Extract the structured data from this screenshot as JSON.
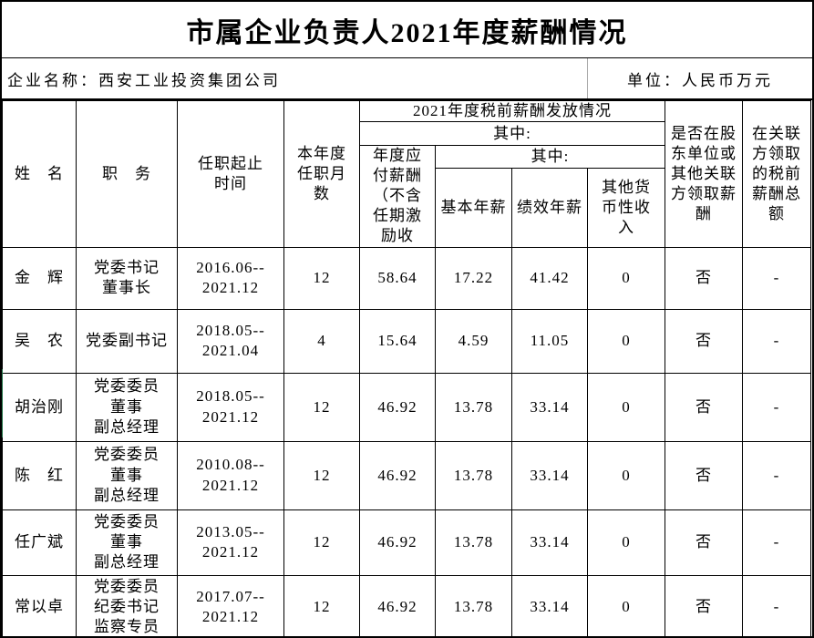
{
  "title": "市属企业负责人2021年度薪酬情况",
  "company_row": {
    "company_label": "企业名称：西安工业投资集团公司",
    "unit_label": "单位：人民币万元"
  },
  "table": {
    "group_header": "2021年度税前薪酬发放情况",
    "among_label_1": "其中:",
    "among_label_2": "其中:",
    "columns": {
      "name": "姓　名",
      "position": "职　务",
      "tenure": "任职起止\n时间",
      "months": "本年度\n任职月\n数",
      "annual_pay": "年度应\n付薪酬\n（不含\n任期激\n励收",
      "base_salary": "基本年薪",
      "performance_salary": "绩效年薪",
      "other_income": "其他货\n币性收\n入",
      "shareholder_pay": "是否在股\n东单位或\n其他关联\n方领取薪\n酬",
      "related_party_pay": "在关联\n方领取\n的税前\n薪酬总\n额"
    },
    "rows": [
      {
        "name": "金　辉",
        "position": "党委书记\n董事长",
        "tenure": "2016.06--\n2021.12",
        "months": "12",
        "annual_pay": "58.64",
        "base": "17.22",
        "performance": "41.42",
        "other": "0",
        "shareholder": "否",
        "related": "-"
      },
      {
        "name": "吴　农",
        "position": "党委副书记",
        "tenure": "2018.05--\n2021.04",
        "months": "4",
        "annual_pay": "15.64",
        "base": "4.59",
        "performance": "11.05",
        "other": "0",
        "shareholder": "否",
        "related": "-"
      },
      {
        "name": "胡治刚",
        "position": "党委委员\n董事\n副总经理",
        "tenure": "2018.05--\n2021.12",
        "months": "12",
        "annual_pay": "46.92",
        "base": "13.78",
        "performance": "33.14",
        "other": "0",
        "shareholder": "否",
        "related": "-"
      },
      {
        "name": "陈　红",
        "position": "党委委员\n董事\n副总经理",
        "tenure": "2010.08--\n2021.12",
        "months": "12",
        "annual_pay": "46.92",
        "base": "13.78",
        "performance": "33.14",
        "other": "0",
        "shareholder": "否",
        "related": "-"
      },
      {
        "name": "任广斌",
        "position": "党委委员\n董事\n副总经理",
        "tenure": "2013.05--\n2021.12",
        "months": "12",
        "annual_pay": "46.92",
        "base": "13.78",
        "performance": "33.14",
        "other": "0",
        "shareholder": "否",
        "related": "-"
      },
      {
        "name": "常以卓",
        "position": "党委委员\n纪委书记\n监察专员",
        "tenure": "2017.07--\n2021.12",
        "months": "12",
        "annual_pay": "46.92",
        "base": "13.78",
        "performance": "33.14",
        "other": "0",
        "shareholder": "否",
        "related": "-"
      }
    ]
  },
  "colors": {
    "border": "#000000",
    "row_marker_green": "#1f7246",
    "company_divider_gray": "#ababab"
  }
}
